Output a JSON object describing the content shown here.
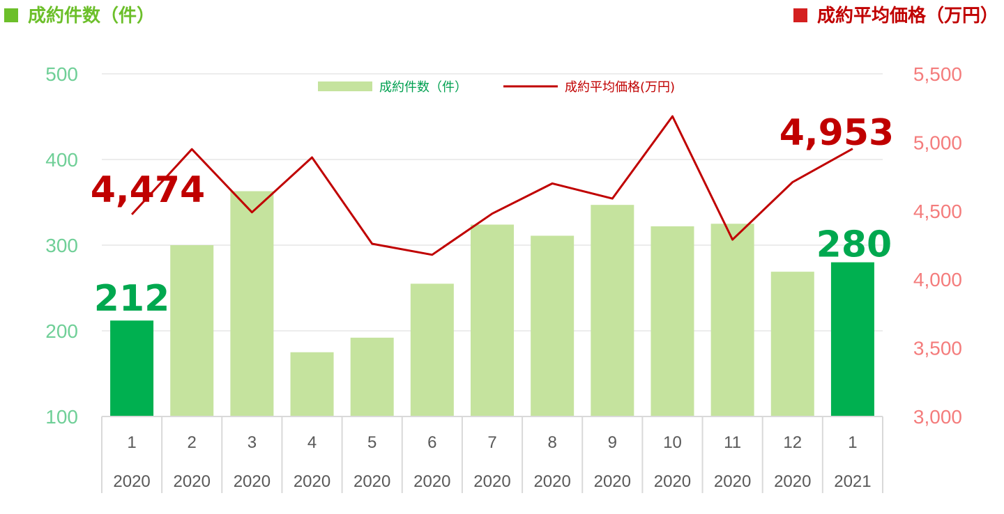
{
  "titles": {
    "left": "成約件数（件）",
    "right": "成約平均価格（万円）"
  },
  "colors": {
    "bar_light": "#c5e39e",
    "bar_highlight": "#00b050",
    "line": "#c00000",
    "left_axis_text": "#6fcf97",
    "right_axis_text": "#f47c7c",
    "left_title": "#6cbf2a",
    "right_title": "#c00000",
    "left_square": "#6cbf2a",
    "right_square": "#d42020",
    "grid": "#d9d9d9",
    "axis_line": "#d9d9d9",
    "legend_text_bar": "#00a050",
    "legend_text_line": "#c00000",
    "callout_bar": "#00a84f",
    "callout_line": "#c00000"
  },
  "chart_data": {
    "type": "bar",
    "categories": [
      {
        "month": "1",
        "year": "2020"
      },
      {
        "month": "2",
        "year": "2020"
      },
      {
        "month": "3",
        "year": "2020"
      },
      {
        "month": "4",
        "year": "2020"
      },
      {
        "month": "5",
        "year": "2020"
      },
      {
        "month": "6",
        "year": "2020"
      },
      {
        "month": "7",
        "year": "2020"
      },
      {
        "month": "8",
        "year": "2020"
      },
      {
        "month": "9",
        "year": "2020"
      },
      {
        "month": "10",
        "year": "2020"
      },
      {
        "month": "11",
        "year": "2020"
      },
      {
        "month": "12",
        "year": "2020"
      },
      {
        "month": "1",
        "year": "2021"
      }
    ],
    "series": [
      {
        "name": "成約件数（件）",
        "type": "bar",
        "axis": "left",
        "values": [
          212,
          300,
          363,
          175,
          192,
          255,
          324,
          311,
          347,
          322,
          325,
          269,
          280
        ],
        "highlight_indices": [
          0,
          12
        ]
      },
      {
        "name": "成約平均価格(万円)",
        "type": "line",
        "axis": "right",
        "values": [
          4474,
          4950,
          4490,
          4890,
          4260,
          4180,
          4480,
          4700,
          4590,
          5190,
          4290,
          4710,
          4953
        ]
      }
    ],
    "left_axis": {
      "min": 100,
      "max": 500,
      "ticks": [
        "100",
        "200",
        "300",
        "400",
        "500"
      ]
    },
    "right_axis": {
      "min": 3000,
      "max": 5500,
      "ticks": [
        "3,000",
        "3,500",
        "4,000",
        "4,500",
        "5,000",
        "5,500"
      ]
    },
    "grid": true,
    "legend": {
      "placement": "top-center",
      "bar_label": "成約件数（件）",
      "line_label": "成約平均価格(万円)"
    },
    "callouts": {
      "bar_first": "212",
      "bar_last": "280",
      "line_first": "4,474",
      "line_last": "4,953"
    }
  }
}
